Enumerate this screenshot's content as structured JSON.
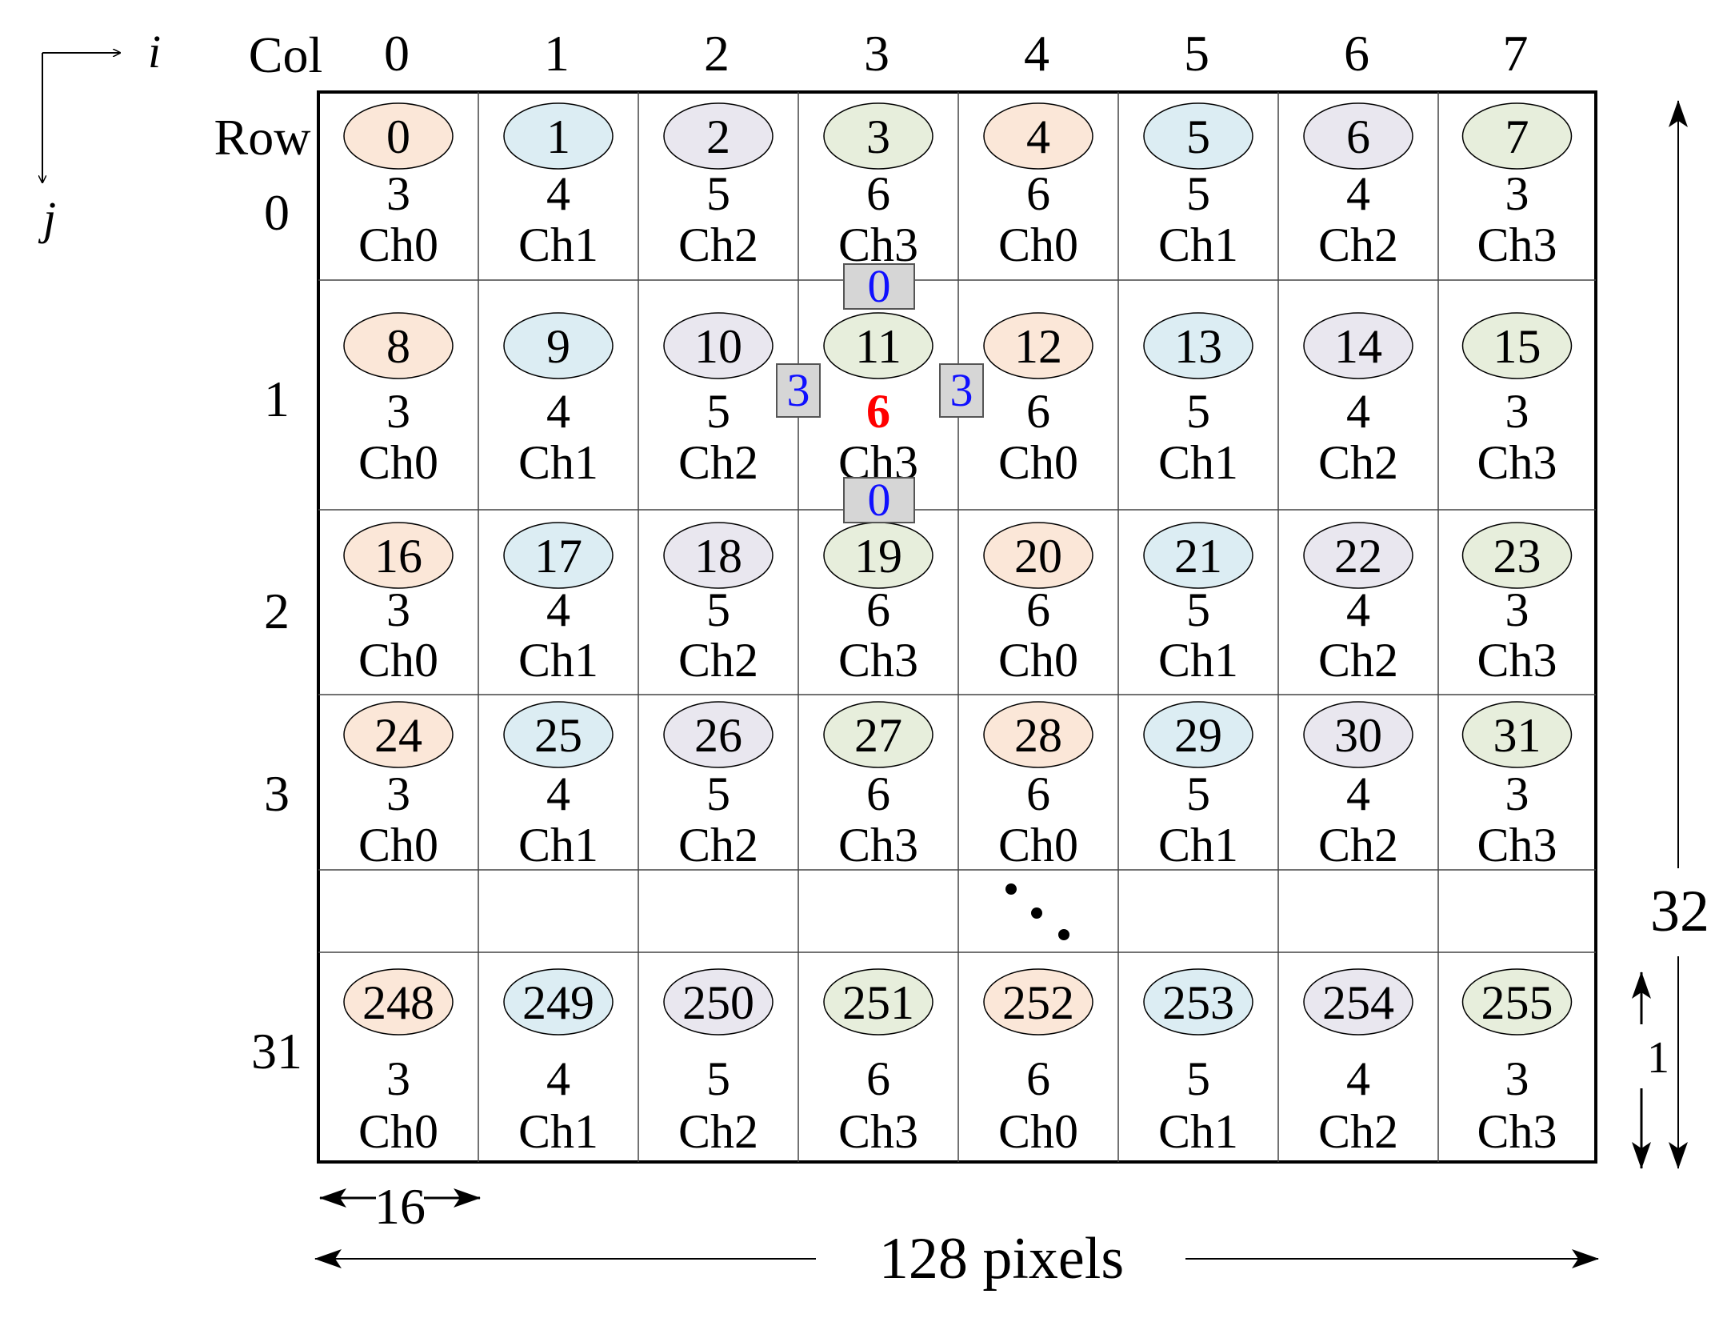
{
  "axes": {
    "i": "i",
    "j": "j"
  },
  "header": {
    "col_label": "Col",
    "row_label": "Row"
  },
  "columns": [
    "0",
    "1",
    "2",
    "3",
    "4",
    "5",
    "6",
    "7"
  ],
  "row_labels": [
    "0",
    "1",
    "2",
    "3",
    "",
    "31"
  ],
  "rows": [
    {
      "row": "0",
      "pixels": [
        "0",
        "1",
        "2",
        "3",
        "4",
        "5",
        "6",
        "7"
      ]
    },
    {
      "row": "1",
      "pixels": [
        "8",
        "9",
        "10",
        "11",
        "12",
        "13",
        "14",
        "15"
      ]
    },
    {
      "row": "2",
      "pixels": [
        "16",
        "17",
        "18",
        "19",
        "20",
        "21",
        "22",
        "23"
      ]
    },
    {
      "row": "3",
      "pixels": [
        "24",
        "25",
        "26",
        "27",
        "28",
        "29",
        "30",
        "31"
      ]
    },
    {
      "row": "31",
      "pixels": [
        "248",
        "249",
        "250",
        "251",
        "252",
        "253",
        "254",
        "255"
      ]
    }
  ],
  "thread_values": [
    "3",
    "4",
    "5",
    "6",
    "6",
    "5",
    "4",
    "3"
  ],
  "channels": [
    "Ch0",
    "Ch1",
    "Ch2",
    "Ch3",
    "Ch0",
    "Ch1",
    "Ch2",
    "Ch3"
  ],
  "channel_colors": [
    "#fbe7d8",
    "#dcedf3",
    "#e9e7ef",
    "#e7eedc"
  ],
  "neighbors": {
    "top": "0",
    "bottom": "0",
    "left": "3",
    "right": "3",
    "center": "6"
  },
  "neighbor_colors": {
    "box_fill": "#d6d6d6",
    "neighbor_text": "#1010ff",
    "center_text": "#ff0000"
  },
  "ellipsis": "…",
  "dimensions": {
    "cell_width": "16",
    "width": "128 pixels",
    "height": "32",
    "row_height": "1"
  }
}
